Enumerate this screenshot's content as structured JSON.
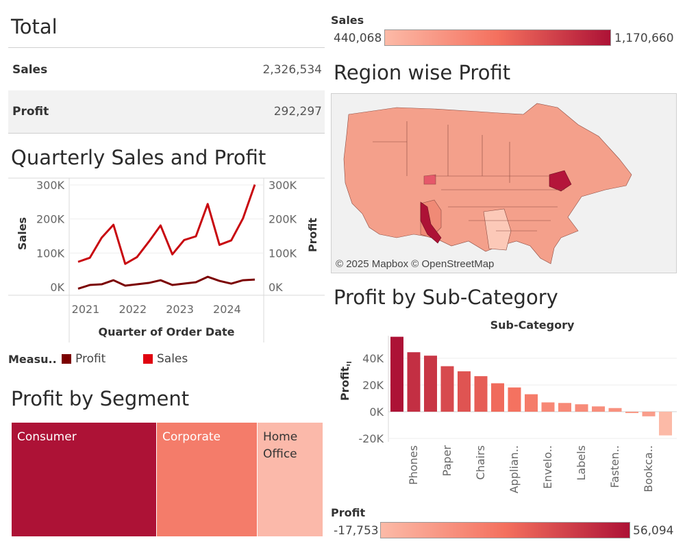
{
  "total": {
    "title": "Total",
    "rows": [
      {
        "label": "Sales",
        "value": "2,326,534"
      },
      {
        "label": "Profit",
        "value": "292,297"
      }
    ]
  },
  "quarterly": {
    "title": "Quarterly Sales and Profit",
    "ylabel_left": "Sales",
    "ylabel_right": "Profit",
    "xlabel": "Quarter of Order Date",
    "y_ticks": [
      "300K",
      "200K",
      "100K",
      "0K"
    ],
    "x_ticks": [
      "2021",
      "2022",
      "2023",
      "2024"
    ],
    "legend_title": "Measu..",
    "legend": [
      {
        "name": "Profit",
        "color": "#7b0000"
      },
      {
        "name": "Sales",
        "color": "#d0020f"
      }
    ]
  },
  "segment": {
    "title": "Profit by Segment",
    "cells": [
      {
        "label": "Consumer",
        "color": "#ad1236"
      },
      {
        "label": "Corporate",
        "color": "#f47c6a"
      },
      {
        "label": "Home Office",
        "color": "#fbb9aa"
      }
    ]
  },
  "sales_legend": {
    "title": "Sales",
    "min": "440,068",
    "max": "1,170,660",
    "color_low": "#fcbaa7",
    "color_high": "#ad1236"
  },
  "region": {
    "title": "Region wise Profit",
    "attribution": "© 2025 Mapbox © OpenStreetMap"
  },
  "subcat": {
    "title": "Profit by Sub-Category",
    "header": "Sub-Category",
    "ylabel": "Profit",
    "y_ticks": [
      "40K",
      "20K",
      "0K",
      "-20K"
    ],
    "x_labels": [
      "Phones",
      "Paper",
      "Chairs",
      "Applian..",
      "Envelo..",
      "Labels",
      "Fasten..",
      "Bookca.."
    ]
  },
  "profit_legend": {
    "title": "Profit",
    "min": "-17,753",
    "max": "56,094",
    "color_low": "#fcbaa7",
    "color_high": "#ad1236"
  },
  "chart_data": [
    {
      "type": "line",
      "title": "Quarterly Sales and Profit",
      "xlabel": "Quarter of Order Date",
      "ylabel": "Sales",
      "ylim": [
        0,
        300000
      ],
      "x": [
        "2021 Q1",
        "2021 Q2",
        "2021 Q3",
        "2021 Q4",
        "2022 Q1",
        "2022 Q2",
        "2022 Q3",
        "2022 Q4",
        "2023 Q1",
        "2023 Q2",
        "2023 Q3",
        "2023 Q4",
        "2024 Q1",
        "2024 Q2",
        "2024 Q3",
        "2024 Q4"
      ],
      "series": [
        {
          "name": "Sales",
          "values": [
            74000,
            86000,
            145000,
            183000,
            68000,
            88000,
            133000,
            181000,
            96000,
            138000,
            149000,
            244000,
            124000,
            137000,
            202000,
            301000
          ]
        },
        {
          "name": "Profit",
          "values": [
            -5000,
            6000,
            8000,
            20000,
            4000,
            8000,
            12000,
            20000,
            6000,
            10000,
            14000,
            30000,
            18000,
            10000,
            20000,
            22000
          ]
        }
      ]
    },
    {
      "type": "treemap",
      "title": "Profit by Segment",
      "categories": [
        "Consumer",
        "Corporate",
        "Home Office"
      ],
      "values": [
        134119,
        91979,
        60299
      ]
    },
    {
      "type": "bar",
      "title": "Profit by Sub-Category",
      "ylabel": "Profit",
      "ylim": [
        -20000,
        60000
      ],
      "values": [
        56094,
        44516,
        41936,
        34054,
        30222,
        26590,
        21279,
        18138,
        13059,
        6964,
        6527,
        5546,
        3960,
        2713,
        -1046,
        -3473,
        -17753
      ]
    }
  ]
}
